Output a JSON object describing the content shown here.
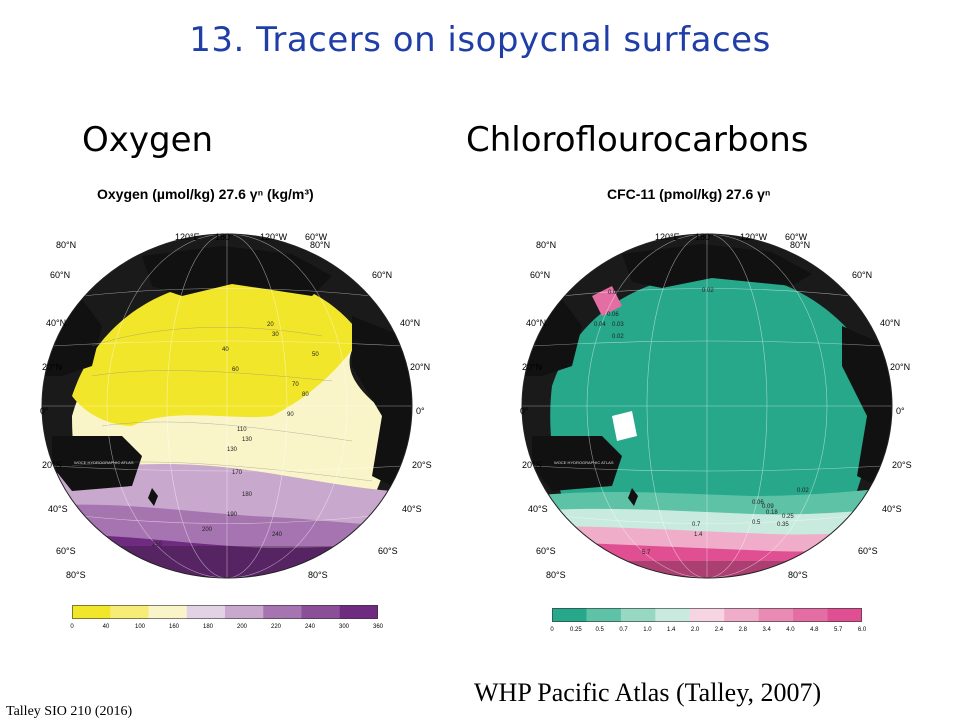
{
  "slide": {
    "title": "13. Tracers on isopycnal surfaces",
    "left_heading": "Oxygen",
    "right_heading": "Chloroflourocarbons",
    "footer_left": "Talley SIO 210 (2016)",
    "footer_right": "WHP Pacific Atlas (Talley, 2007)"
  },
  "maps": {
    "oxygen": {
      "title": "Oxygen (µmol/kg) 27.6 γⁿ (kg/m³)",
      "atlas_label": "WOCE HYDROGRAPHIC ATLAS",
      "contour_labels": [
        "20",
        "30",
        "40",
        "50",
        "60",
        "70",
        "80",
        "90",
        "110",
        "130",
        "130",
        "170",
        "180",
        "190",
        "200",
        "240",
        "250"
      ],
      "colorbar": {
        "ticks": [
          "0",
          "40",
          "100",
          "160",
          "180",
          "200",
          "220",
          "240",
          "300",
          "360"
        ],
        "colors": [
          "#f2e62a",
          "#f6ec76",
          "#f9f5c9",
          "#e3d2e6",
          "#c9a8cd",
          "#a674b0",
          "#8a4f98",
          "#6e2b7f"
        ]
      }
    },
    "cfc": {
      "title": "CFC-11 (pmol/kg) 27.6 γⁿ",
      "atlas_label": "WOCE HYDROGRAPHIC ATLAS",
      "contour_labels": [
        "0.09",
        "0.06",
        "0.03",
        "0.02",
        "0.04",
        "0.02",
        "0.02",
        "0.06",
        "0.09",
        "0.18",
        "0.25",
        "0.35",
        "0.5",
        "0.7",
        "1.4",
        "5.7"
      ],
      "colorbar": {
        "ticks": [
          "0",
          "0.25",
          "0.5",
          "0.7",
          "1.0",
          "1.4",
          "2.0",
          "2.4",
          "2.8",
          "3.4",
          "4.0",
          "4.8",
          "5.7",
          "6.0"
        ],
        "colors": [
          "#27a88a",
          "#5ec2a6",
          "#97d8c3",
          "#c9ebdf",
          "#f6d4e2",
          "#efadc9",
          "#e98bb5",
          "#e46ea4",
          "#df4f92"
        ]
      }
    },
    "axes": {
      "lon_labels": [
        "120°E",
        "180°",
        "120°W",
        "60°W"
      ],
      "lat_left": [
        "80°N",
        "60°N",
        "40°N",
        "20°N",
        "0°",
        "20°S",
        "40°S",
        "60°S",
        "80°S"
      ],
      "lat_right": [
        "80°N",
        "60°N",
        "40°N",
        "20°N",
        "0°",
        "20°S",
        "40°S",
        "60°S",
        "80°S"
      ]
    }
  }
}
